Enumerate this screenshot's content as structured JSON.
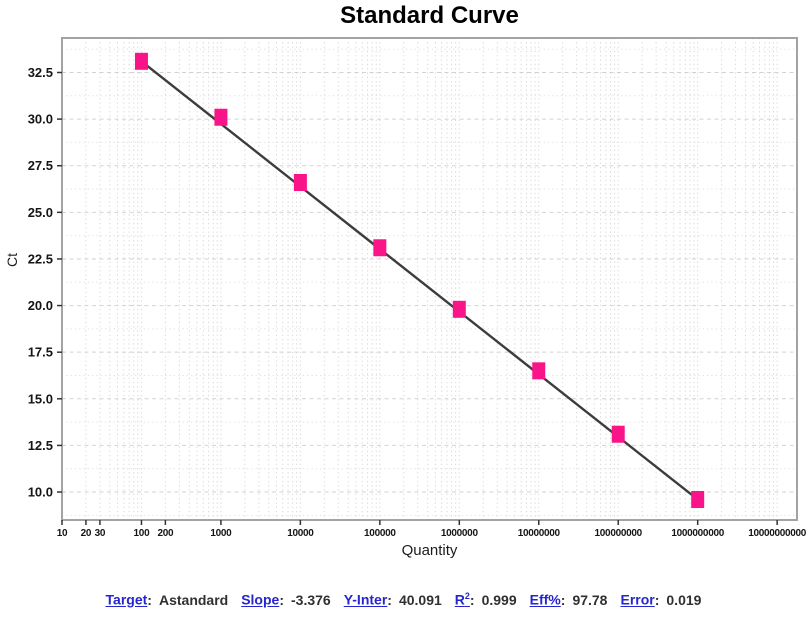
{
  "chart_data": {
    "type": "scatter",
    "title": "Standard Curve",
    "xlabel": "Quantity",
    "ylabel": "Ct",
    "x_scale": "log",
    "x_domain_log10": [
      1,
      10.25
    ],
    "y_domain": [
      8.5,
      34.35
    ],
    "grid": {
      "vertical": "log-minor-dotted",
      "horizontal_major": "dashed",
      "horizontal_minor": "dotted",
      "on": true
    },
    "y_ticks": [
      10.0,
      12.5,
      15.0,
      17.5,
      20.0,
      22.5,
      25.0,
      27.5,
      30.0,
      32.5
    ],
    "y_tick_labels": [
      "10.0",
      "12.5",
      "15.0",
      "17.5",
      "20.0",
      "22.5",
      "25.0",
      "27.5",
      "30.0",
      "32.5"
    ],
    "x_ticks": [
      {
        "value": 10,
        "label": "10"
      },
      {
        "value": 20,
        "label": "20"
      },
      {
        "value": 30,
        "label": "30"
      },
      {
        "value": 100,
        "label": "100"
      },
      {
        "value": 200,
        "label": "200"
      },
      {
        "value": 1000,
        "label": "1000"
      },
      {
        "value": 10000,
        "label": "10000"
      },
      {
        "value": 100000,
        "label": "100000"
      },
      {
        "value": 1000000,
        "label": "1000000"
      },
      {
        "value": 10000000,
        "label": "10000000"
      },
      {
        "value": 100000000,
        "label": "100000000"
      },
      {
        "value": 1000000000,
        "label": "1000000000"
      },
      {
        "value": 10000000000,
        "label": "10000000000"
      }
    ],
    "series": [
      {
        "name": "Astandard",
        "marker": "square",
        "color": "#FA1489",
        "points": [
          {
            "quantity": 100,
            "ct": 33.1
          },
          {
            "quantity": 1000,
            "ct": 30.1
          },
          {
            "quantity": 10000,
            "ct": 26.6
          },
          {
            "quantity": 100000,
            "ct": 23.1
          },
          {
            "quantity": 1000000,
            "ct": 19.8
          },
          {
            "quantity": 10000000,
            "ct": 16.5
          },
          {
            "quantity": 100000000,
            "ct": 13.1
          },
          {
            "quantity": 1000000000,
            "ct": 9.6
          }
        ]
      }
    ],
    "fit_line": {
      "slope": -3.376,
      "y_intercept": 40.091,
      "x_from": 100,
      "x_to": 1000000000,
      "color": "#3C3C3C"
    }
  },
  "stats": {
    "separator": ":",
    "items": [
      {
        "label": "Target",
        "sup": "",
        "value": "Astandard"
      },
      {
        "label": "Slope",
        "sup": "",
        "value": "-3.376"
      },
      {
        "label": "Y-Inter",
        "sup": "",
        "value": "40.091"
      },
      {
        "label": "R",
        "sup": "2",
        "value": "0.999"
      },
      {
        "label": "Eff%",
        "sup": "",
        "value": "97.78"
      },
      {
        "label": "Error",
        "sup": "",
        "value": "0.019"
      }
    ]
  },
  "colors": {
    "point_pink": "#FA1489",
    "regression_line": "#3C3C3C",
    "stat_label_blue": "#2626CE",
    "grid_gray": "#D8D8D8",
    "plot_border_gray": "#A3A3A3"
  }
}
